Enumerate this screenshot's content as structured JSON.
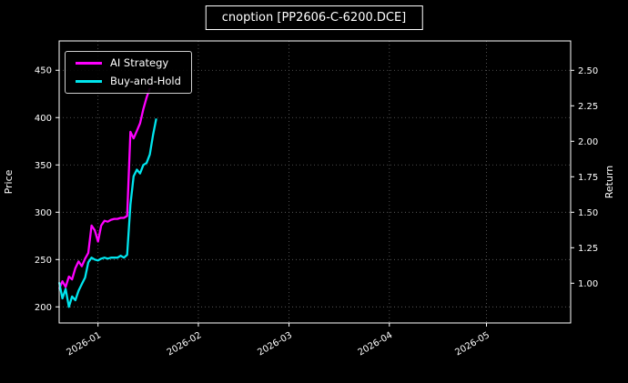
{
  "chart_data": {
    "type": "line",
    "title": "cnoption [PP2606-C-6200.DCE]",
    "background": "#000000",
    "x_unit": "days since 2025-12-20",
    "xlim": [
      0,
      158
    ],
    "x_ticks": [
      {
        "pos": 12,
        "label": "2026-01"
      },
      {
        "pos": 43,
        "label": "2026-02"
      },
      {
        "pos": 71,
        "label": "2026-03"
      },
      {
        "pos": 102,
        "label": "2026-04"
      },
      {
        "pos": 132,
        "label": "2026-05"
      }
    ],
    "left_axis": {
      "label": "Price",
      "lim": [
        183,
        481
      ],
      "ticks": [
        {
          "pos": 200,
          "label": "200"
        },
        {
          "pos": 250,
          "label": "250"
        },
        {
          "pos": 300,
          "label": "300"
        },
        {
          "pos": 350,
          "label": "350"
        },
        {
          "pos": 400,
          "label": "400"
        },
        {
          "pos": 450,
          "label": "450"
        }
      ]
    },
    "right_axis": {
      "label": "Return",
      "lim": [
        0.72,
        2.707
      ],
      "ticks": [
        {
          "pos": 1.0,
          "label": "1.00"
        },
        {
          "pos": 1.25,
          "label": "1.25"
        },
        {
          "pos": 1.5,
          "label": "1.50"
        },
        {
          "pos": 1.75,
          "label": "1.75"
        },
        {
          "pos": 2.0,
          "label": "2.00"
        },
        {
          "pos": 2.25,
          "label": "2.25"
        },
        {
          "pos": 2.5,
          "label": "2.50"
        }
      ]
    },
    "grid": {
      "show": true,
      "style": "dotted",
      "color": "#666666"
    },
    "legend": {
      "position": "upper left"
    },
    "series": [
      {
        "name": "AI Strategy",
        "color": "#ff00ff",
        "axis": "left",
        "points": [
          [
            0,
            219
          ],
          [
            1,
            227
          ],
          [
            2,
            221
          ],
          [
            3,
            232
          ],
          [
            4,
            229
          ],
          [
            5,
            241
          ],
          [
            6,
            248
          ],
          [
            7,
            243
          ],
          [
            8,
            251
          ],
          [
            9,
            257
          ],
          [
            10,
            286
          ],
          [
            11,
            281
          ],
          [
            12,
            269
          ],
          [
            13,
            286
          ],
          [
            14,
            291
          ],
          [
            15,
            290
          ],
          [
            16,
            292
          ],
          [
            17,
            293
          ],
          [
            18,
            293
          ],
          [
            19,
            294
          ],
          [
            20,
            294
          ],
          [
            21,
            296
          ],
          [
            22,
            385
          ],
          [
            23,
            378
          ],
          [
            24,
            386
          ],
          [
            25,
            394
          ],
          [
            26,
            409
          ],
          [
            27,
            421
          ],
          [
            28,
            431
          ]
        ]
      },
      {
        "name": "Buy-and-Hold",
        "color": "#00e5ee",
        "axis": "left",
        "points": [
          [
            0,
            226
          ],
          [
            1,
            209
          ],
          [
            2,
            219
          ],
          [
            3,
            200
          ],
          [
            4,
            211
          ],
          [
            5,
            207
          ],
          [
            6,
            217
          ],
          [
            7,
            224
          ],
          [
            8,
            231
          ],
          [
            9,
            247
          ],
          [
            10,
            252
          ],
          [
            11,
            250
          ],
          [
            12,
            249
          ],
          [
            13,
            251
          ],
          [
            14,
            252
          ],
          [
            15,
            251
          ],
          [
            16,
            252
          ],
          [
            17,
            252
          ],
          [
            18,
            252
          ],
          [
            19,
            254
          ],
          [
            20,
            252
          ],
          [
            21,
            255
          ],
          [
            22,
            308
          ],
          [
            23,
            338
          ],
          [
            24,
            345
          ],
          [
            25,
            341
          ],
          [
            26,
            350
          ],
          [
            27,
            352
          ],
          [
            28,
            361
          ],
          [
            29,
            382
          ],
          [
            30,
            399
          ]
        ]
      }
    ]
  }
}
